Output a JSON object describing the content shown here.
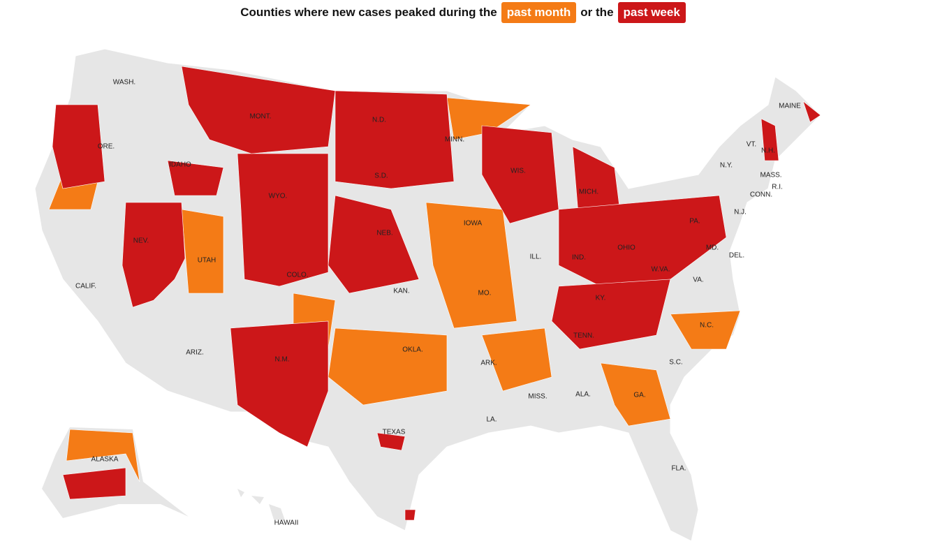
{
  "header": {
    "text_1": "Counties where new cases peaked during the",
    "badge_1": {
      "text": "past month",
      "color": "#f47b16"
    },
    "text_2": "or the",
    "badge_2": {
      "text": "past week",
      "color": "#cc1719"
    }
  },
  "map": {
    "labels": [
      "WASH.",
      "ORE.",
      "CALIF.",
      "IDAHO",
      "NEV.",
      "MONT.",
      "WYO.",
      "UTAH",
      "COLO.",
      "ARIZ.",
      "N.M.",
      "N.D.",
      "S.D.",
      "NEB.",
      "KAN.",
      "OKLA.",
      "TEXAS",
      "MINN.",
      "IOWA",
      "MO.",
      "ARK.",
      "LA.",
      "WIS.",
      "ILL.",
      "MISS.",
      "MICH.",
      "IND.",
      "OHIO",
      "KY.",
      "TENN.",
      "ALA.",
      "GA.",
      "FLA.",
      "W.VA.",
      "VA.",
      "N.C.",
      "S.C.",
      "PA.",
      "MD.",
      "DEL.",
      "N.J.",
      "N.Y.",
      "CONN.",
      "R.I.",
      "MASS.",
      "VT.",
      "N.H.",
      "MAINE",
      "ALASKA",
      "HAWAII"
    ]
  }
}
